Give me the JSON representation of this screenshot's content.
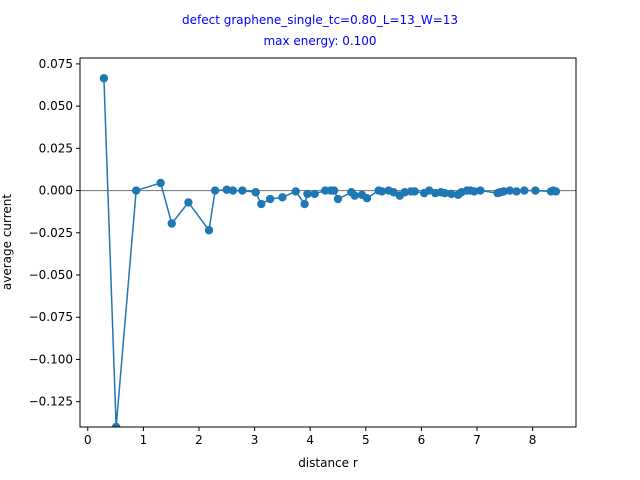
{
  "chart_data": {
    "type": "line",
    "title": "defect graphene_single_tc=0.80_L=13_W=13",
    "subtitle": "max energy: 0.100",
    "xlabel": "distance r",
    "ylabel": "average current",
    "xlim": [
      -0.14,
      8.78
    ],
    "ylim": [
      -0.14,
      0.0785
    ],
    "x_ticks": [
      "0",
      "1",
      "2",
      "3",
      "4",
      "5",
      "6",
      "7",
      "8"
    ],
    "y_ticks": [
      "0.075",
      "0.050",
      "0.025",
      "0.000",
      "−0.025",
      "−0.050",
      "−0.075",
      "−0.100",
      "−0.125"
    ],
    "zero_line": true,
    "colors": {
      "series": "#1f77b4",
      "title": "#0000ff",
      "zero_line": "#808080"
    },
    "series": [
      {
        "marker": "circle",
        "points": [
          [
            0.29,
            0.0665
          ],
          [
            0.51,
            -0.14
          ],
          [
            0.87,
            0.0
          ],
          [
            1.31,
            0.0045
          ],
          [
            1.51,
            -0.0195
          ],
          [
            1.81,
            -0.007
          ],
          [
            2.18,
            -0.0235
          ],
          [
            2.29,
            0.0
          ],
          [
            2.5,
            0.0005
          ],
          [
            2.61,
            0.0
          ],
          [
            2.78,
            0.0
          ],
          [
            3.02,
            -0.001
          ],
          [
            3.12,
            -0.008
          ],
          [
            3.28,
            -0.005
          ],
          [
            3.5,
            -0.004
          ],
          [
            3.74,
            -0.0005
          ],
          [
            3.9,
            -0.008
          ],
          [
            3.95,
            -0.002
          ],
          [
            4.08,
            -0.002
          ],
          [
            4.27,
            0.0
          ],
          [
            4.37,
            0.0
          ],
          [
            4.43,
            0.0
          ],
          [
            4.5,
            -0.005
          ],
          [
            4.74,
            -0.001
          ],
          [
            4.8,
            -0.003
          ],
          [
            4.93,
            -0.0025
          ],
          [
            5.02,
            -0.0045
          ],
          [
            5.23,
            0.0
          ],
          [
            5.29,
            -0.0005
          ],
          [
            5.41,
            0.0
          ],
          [
            5.5,
            -0.001
          ],
          [
            5.61,
            -0.003
          ],
          [
            5.7,
            -0.001
          ],
          [
            5.81,
            -0.0005
          ],
          [
            5.88,
            -0.0005
          ],
          [
            6.05,
            -0.0015
          ],
          [
            6.14,
            0.0
          ],
          [
            6.25,
            -0.0015
          ],
          [
            6.35,
            -0.001
          ],
          [
            6.42,
            -0.0015
          ],
          [
            6.54,
            -0.002
          ],
          [
            6.66,
            -0.0025
          ],
          [
            6.72,
            -0.001
          ],
          [
            6.82,
            0.0
          ],
          [
            6.88,
            0.0
          ],
          [
            6.95,
            -0.0005
          ],
          [
            7.06,
            0.0
          ],
          [
            7.37,
            -0.0015
          ],
          [
            7.42,
            -0.001
          ],
          [
            7.48,
            -0.0005
          ],
          [
            7.59,
            0.0
          ],
          [
            7.71,
            -0.0005
          ],
          [
            7.85,
            0.0
          ],
          [
            8.05,
            0.0
          ],
          [
            8.33,
            -0.0005
          ],
          [
            8.37,
            0.0
          ],
          [
            8.42,
            -0.0005
          ]
        ]
      }
    ]
  }
}
